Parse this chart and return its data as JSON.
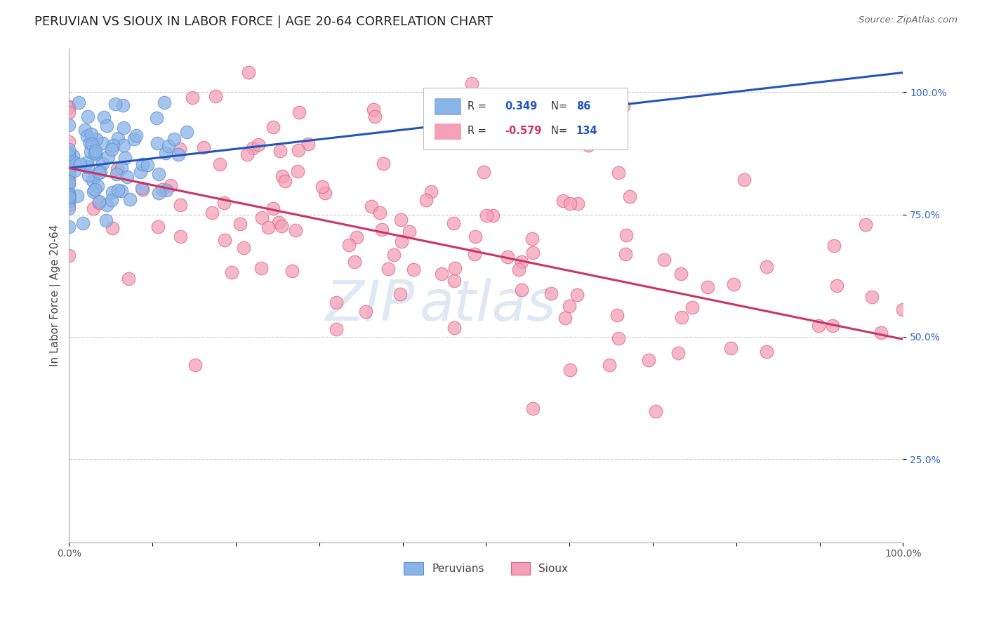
{
  "title": "PERUVIAN VS SIOUX IN LABOR FORCE | AGE 20-64 CORRELATION CHART",
  "source": "Source: ZipAtlas.com",
  "ylabel": "In Labor Force | Age 20-64",
  "ytick_vals": [
    0.25,
    0.5,
    0.75,
    1.0
  ],
  "peruvian_color": "#8ab4e8",
  "peruvian_edge": "#6090d0",
  "sioux_color": "#f4a0b8",
  "sioux_edge": "#e06080",
  "blue_line_color": "#2255bb",
  "pink_line_color": "#cc3366",
  "watermark_zip": "ZIP",
  "watermark_atlas": "atlas",
  "peruvian_R": 0.349,
  "peruvian_N": 86,
  "sioux_R": -0.579,
  "sioux_N": 134,
  "xlim": [
    0.0,
    1.0
  ],
  "ylim": [
    0.08,
    1.09
  ],
  "blue_line_x0": 0.0,
  "blue_line_y0": 0.845,
  "blue_line_x1": 1.0,
  "blue_line_y1": 1.04,
  "pink_line_x0": 0.0,
  "pink_line_y0": 0.845,
  "pink_line_x1": 1.0,
  "pink_line_y1": 0.495
}
